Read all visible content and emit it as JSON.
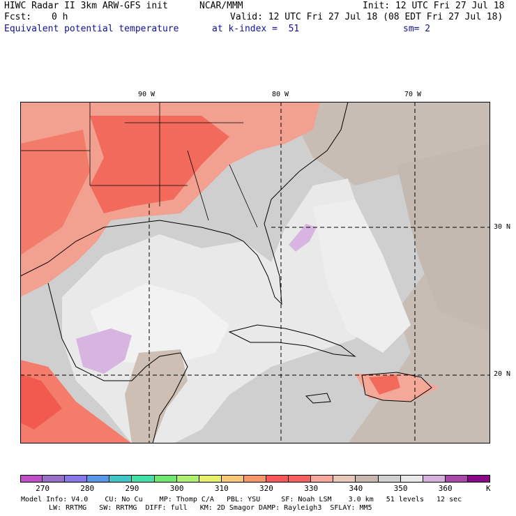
{
  "header": {
    "line1_left": "HIWC Radar II 3km ARW-GFS init",
    "line1_mid": "NCAR/MMM",
    "line1_right": "Init: 12 UTC Fri 27 Jul 18",
    "line2_left": "Fcst:",
    "line2_fcst": "0 h",
    "line2_right": "Valid: 12 UTC Fri 27 Jul 18 (08 EDT Fri 27 Jul 18)",
    "field_name": "Equivalent potential temperature",
    "level": "at k-index =  51",
    "smoothing": "sm= 2"
  },
  "map": {
    "lon_labels": [
      "90 W",
      "80 W",
      "70 W"
    ],
    "lat_labels": [
      "30 N",
      "20 N"
    ]
  },
  "colorbar": {
    "colors": [
      "#c050c8",
      "#9870c8",
      "#8878e8",
      "#5898e8",
      "#40c8c8",
      "#40e0a8",
      "#70e870",
      "#b0f070",
      "#e8f068",
      "#f8c878",
      "#f89868",
      "#f85858",
      "#f86060",
      "#f8a898",
      "#e8c8b8",
      "#c8b8b0",
      "#d0d0d0",
      "#e8e8e8",
      "#d8b0e0",
      "#a848a8",
      "#880888"
    ],
    "labels": [
      "270",
      "280",
      "290",
      "300",
      "310",
      "320",
      "330",
      "340",
      "350",
      "360"
    ],
    "unit": "K"
  },
  "footer": {
    "line1": "Model Info: V4.0    CU: No Cu    MP: Thomp C/A   PBL: YSU     SF: Noah LSM    3.0 km   51 levels   12 sec",
    "line2": "LW: RRTMG   SW: RRTMG  DIFF: full   KM: 2D Smagor DAMP: Rayleigh3  SFLAY: MM5"
  }
}
